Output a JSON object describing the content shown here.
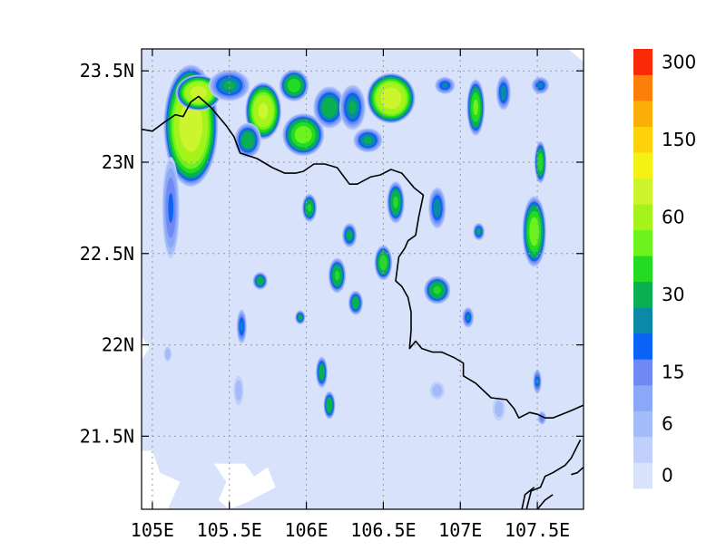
{
  "chart_data": {
    "type": "heatmap",
    "title": "",
    "xlabel": "",
    "ylabel": "",
    "x_range_deg": [
      104.93,
      107.8
    ],
    "y_range_deg": [
      21.1,
      23.62
    ],
    "x_ticks": [
      {
        "value": 105.0,
        "label": "105E"
      },
      {
        "value": 105.5,
        "label": "105.5E"
      },
      {
        "value": 106.0,
        "label": "106E"
      },
      {
        "value": 106.5,
        "label": "106.5E"
      },
      {
        "value": 107.0,
        "label": "107E"
      },
      {
        "value": 107.5,
        "label": "107.5E"
      }
    ],
    "y_ticks": [
      {
        "value": 21.5,
        "label": "21.5N"
      },
      {
        "value": 22.0,
        "label": "22N"
      },
      {
        "value": 22.5,
        "label": "22.5N"
      },
      {
        "value": 23.0,
        "label": "23N"
      },
      {
        "value": 23.5,
        "label": "23.5N"
      }
    ],
    "grid": true,
    "colorbar": {
      "placement": "right",
      "levels": [
        0,
        3,
        6,
        10,
        15,
        20,
        25,
        30,
        40,
        50,
        60,
        80,
        100,
        150,
        200,
        250,
        300
      ],
      "labels": [
        {
          "level": 0,
          "label": "0"
        },
        {
          "level": 6,
          "label": "6"
        },
        {
          "level": 15,
          "label": "15"
        },
        {
          "level": 30,
          "label": "30"
        },
        {
          "level": 60,
          "label": "60"
        },
        {
          "level": 150,
          "label": "150"
        },
        {
          "level": 300,
          "label": "300"
        }
      ],
      "colors": [
        "#d8e3fb",
        "#c0d0fa",
        "#a3bcf9",
        "#8aa8f7",
        "#6f88f4",
        "#0a62f7",
        "#0b8aa7",
        "#0aaf52",
        "#22db22",
        "#6ef21e",
        "#a4f41c",
        "#ccf52e",
        "#f4f214",
        "#fdd20b",
        "#fcae08",
        "#fb800a",
        "#fb2a06"
      ]
    },
    "rain_cells": [
      {
        "lon": 105.25,
        "lat": 23.2,
        "rx": 0.18,
        "ry": 0.34,
        "peak": 90
      },
      {
        "lon": 105.3,
        "lat": 23.38,
        "rx": 0.15,
        "ry": 0.1,
        "peak": 85
      },
      {
        "lon": 105.12,
        "lat": 22.75,
        "rx": 0.06,
        "ry": 0.3,
        "peak": 20
      },
      {
        "lon": 105.5,
        "lat": 23.42,
        "rx": 0.14,
        "ry": 0.09,
        "peak": 30
      },
      {
        "lon": 105.72,
        "lat": 23.28,
        "rx": 0.12,
        "ry": 0.16,
        "peak": 80
      },
      {
        "lon": 105.62,
        "lat": 23.12,
        "rx": 0.09,
        "ry": 0.1,
        "peak": 35
      },
      {
        "lon": 105.92,
        "lat": 23.42,
        "rx": 0.1,
        "ry": 0.09,
        "peak": 45
      },
      {
        "lon": 105.98,
        "lat": 23.15,
        "rx": 0.14,
        "ry": 0.12,
        "peak": 55
      },
      {
        "lon": 106.15,
        "lat": 23.3,
        "rx": 0.11,
        "ry": 0.12,
        "peak": 35
      },
      {
        "lon": 106.3,
        "lat": 23.3,
        "rx": 0.09,
        "ry": 0.13,
        "peak": 30
      },
      {
        "lon": 106.55,
        "lat": 23.35,
        "rx": 0.16,
        "ry": 0.14,
        "peak": 90
      },
      {
        "lon": 106.4,
        "lat": 23.12,
        "rx": 0.1,
        "ry": 0.07,
        "peak": 30
      },
      {
        "lon": 106.9,
        "lat": 23.42,
        "rx": 0.07,
        "ry": 0.05,
        "peak": 25
      },
      {
        "lon": 107.1,
        "lat": 23.3,
        "rx": 0.06,
        "ry": 0.16,
        "peak": 50
      },
      {
        "lon": 107.28,
        "lat": 23.38,
        "rx": 0.05,
        "ry": 0.1,
        "peak": 28
      },
      {
        "lon": 107.52,
        "lat": 23.42,
        "rx": 0.06,
        "ry": 0.05,
        "peak": 25
      },
      {
        "lon": 107.52,
        "lat": 23.0,
        "rx": 0.04,
        "ry": 0.12,
        "peak": 45
      },
      {
        "lon": 107.48,
        "lat": 22.62,
        "rx": 0.08,
        "ry": 0.2,
        "peak": 55
      },
      {
        "lon": 107.12,
        "lat": 22.62,
        "rx": 0.04,
        "ry": 0.05,
        "peak": 30
      },
      {
        "lon": 106.85,
        "lat": 22.75,
        "rx": 0.06,
        "ry": 0.12,
        "peak": 28
      },
      {
        "lon": 106.58,
        "lat": 22.78,
        "rx": 0.06,
        "ry": 0.12,
        "peak": 40
      },
      {
        "lon": 106.02,
        "lat": 22.75,
        "rx": 0.05,
        "ry": 0.08,
        "peak": 40
      },
      {
        "lon": 106.28,
        "lat": 22.6,
        "rx": 0.05,
        "ry": 0.07,
        "peak": 32
      },
      {
        "lon": 106.2,
        "lat": 22.38,
        "rx": 0.06,
        "ry": 0.1,
        "peak": 40
      },
      {
        "lon": 106.5,
        "lat": 22.45,
        "rx": 0.06,
        "ry": 0.1,
        "peak": 45
      },
      {
        "lon": 106.32,
        "lat": 22.23,
        "rx": 0.05,
        "ry": 0.07,
        "peak": 35
      },
      {
        "lon": 106.85,
        "lat": 22.3,
        "rx": 0.09,
        "ry": 0.08,
        "peak": 40
      },
      {
        "lon": 107.05,
        "lat": 22.15,
        "rx": 0.04,
        "ry": 0.06,
        "peak": 25
      },
      {
        "lon": 105.7,
        "lat": 22.35,
        "rx": 0.05,
        "ry": 0.05,
        "peak": 35
      },
      {
        "lon": 105.58,
        "lat": 22.1,
        "rx": 0.035,
        "ry": 0.1,
        "peak": 25
      },
      {
        "lon": 105.96,
        "lat": 22.15,
        "rx": 0.035,
        "ry": 0.04,
        "peak": 32
      },
      {
        "lon": 106.1,
        "lat": 21.85,
        "rx": 0.04,
        "ry": 0.09,
        "peak": 35
      },
      {
        "lon": 106.15,
        "lat": 21.67,
        "rx": 0.04,
        "ry": 0.08,
        "peak": 38
      },
      {
        "lon": 107.5,
        "lat": 21.8,
        "rx": 0.03,
        "ry": 0.07,
        "peak": 25
      },
      {
        "lon": 107.53,
        "lat": 21.6,
        "rx": 0.03,
        "ry": 0.04,
        "peak": 18
      },
      {
        "lon": 105.56,
        "lat": 21.75,
        "rx": 0.04,
        "ry": 0.1,
        "peak": 8
      },
      {
        "lon": 105.1,
        "lat": 21.95,
        "rx": 0.03,
        "ry": 0.05,
        "peak": 9
      },
      {
        "lon": 106.85,
        "lat": 21.75,
        "rx": 0.06,
        "ry": 0.06,
        "peak": 8
      },
      {
        "lon": 107.25,
        "lat": 21.65,
        "rx": 0.05,
        "ry": 0.08,
        "peak": 8
      }
    ],
    "white_areas": [
      [
        [
          104.93,
          21.42
        ],
        [
          105.0,
          21.42
        ],
        [
          105.05,
          21.3
        ],
        [
          105.18,
          21.25
        ],
        [
          105.1,
          21.1
        ],
        [
          104.93,
          21.1
        ]
      ],
      [
        [
          105.4,
          21.35
        ],
        [
          105.6,
          21.35
        ],
        [
          105.66,
          21.28
        ],
        [
          105.75,
          21.33
        ],
        [
          105.8,
          21.22
        ],
        [
          105.62,
          21.14
        ],
        [
          105.5,
          21.1
        ],
        [
          105.43,
          21.15
        ],
        [
          105.48,
          21.25
        ]
      ],
      [
        [
          104.93,
          22.05
        ],
        [
          104.98,
          21.98
        ],
        [
          104.93,
          21.92
        ]
      ],
      [
        [
          107.7,
          23.62
        ],
        [
          107.8,
          23.62
        ],
        [
          107.8,
          23.55
        ]
      ]
    ],
    "borders": [
      [
        [
          104.93,
          23.18
        ],
        [
          105.0,
          23.17
        ],
        [
          105.08,
          23.22
        ],
        [
          105.15,
          23.26
        ],
        [
          105.2,
          23.25
        ],
        [
          105.25,
          23.33
        ],
        [
          105.3,
          23.36
        ],
        [
          105.38,
          23.3
        ],
        [
          105.48,
          23.2
        ],
        [
          105.53,
          23.14
        ],
        [
          105.57,
          23.05
        ],
        [
          105.68,
          23.02
        ],
        [
          105.78,
          22.97
        ],
        [
          105.86,
          22.94
        ],
        [
          105.93,
          22.94
        ],
        [
          105.98,
          22.95
        ],
        [
          106.05,
          22.99
        ],
        [
          106.12,
          22.99
        ],
        [
          106.2,
          22.97
        ],
        [
          106.28,
          22.88
        ],
        [
          106.33,
          22.88
        ],
        [
          106.42,
          22.92
        ],
        [
          106.48,
          22.93
        ],
        [
          106.55,
          22.96
        ],
        [
          106.62,
          22.94
        ],
        [
          106.7,
          22.86
        ],
        [
          106.76,
          22.82
        ],
        [
          106.73,
          22.7
        ],
        [
          106.71,
          22.6
        ],
        [
          106.66,
          22.57
        ],
        [
          106.64,
          22.53
        ],
        [
          106.6,
          22.48
        ],
        [
          106.58,
          22.35
        ],
        [
          106.62,
          22.32
        ],
        [
          106.66,
          22.26
        ],
        [
          106.68,
          22.18
        ],
        [
          106.68,
          22.08
        ],
        [
          106.67,
          21.98
        ],
        [
          106.71,
          22.02
        ],
        [
          106.75,
          21.98
        ],
        [
          106.82,
          21.96
        ],
        [
          106.88,
          21.96
        ],
        [
          106.96,
          21.93
        ],
        [
          107.02,
          21.9
        ],
        [
          107.02,
          21.83
        ],
        [
          107.1,
          21.79
        ],
        [
          107.2,
          21.71
        ],
        [
          107.3,
          21.7
        ],
        [
          107.35,
          21.65
        ],
        [
          107.38,
          21.6
        ],
        [
          107.45,
          21.63
        ],
        [
          107.5,
          21.62
        ],
        [
          107.55,
          21.6
        ],
        [
          107.6,
          21.6
        ],
        [
          107.66,
          21.62
        ],
        [
          107.72,
          21.64
        ],
        [
          107.8,
          21.67
        ]
      ],
      [
        [
          107.78,
          21.48
        ],
        [
          107.72,
          21.38
        ],
        [
          107.68,
          21.34
        ],
        [
          107.6,
          21.3
        ],
        [
          107.55,
          21.28
        ],
        [
          107.52,
          21.22
        ],
        [
          107.46,
          21.2
        ],
        [
          107.43,
          21.1
        ]
      ],
      [
        [
          107.4,
          21.1
        ],
        [
          107.42,
          21.18
        ],
        [
          107.48,
          21.22
        ]
      ],
      [
        [
          107.5,
          21.1
        ],
        [
          107.55,
          21.15
        ],
        [
          107.6,
          21.18
        ]
      ],
      [
        [
          107.8,
          21.33
        ],
        [
          107.76,
          21.3
        ],
        [
          107.72,
          21.29
        ]
      ]
    ]
  }
}
